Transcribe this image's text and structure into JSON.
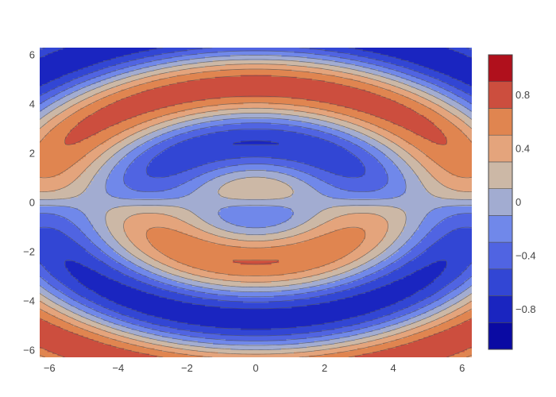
{
  "chart_data": {
    "type": "heatmap",
    "subtype": "filled-contour",
    "title": "",
    "xlabel": "",
    "ylabel": "",
    "xlim": [
      -6.283,
      6.283
    ],
    "ylim": [
      -6.283,
      6.283
    ],
    "x_ticks": [
      -6,
      -4,
      -2,
      0,
      2,
      4,
      6
    ],
    "x_tick_labels": [
      "−6",
      "−4",
      "−2",
      "0",
      "2",
      "4",
      "6"
    ],
    "y_ticks": [
      -6,
      -4,
      -2,
      0,
      2,
      4,
      6
    ],
    "y_tick_labels": [
      "−6",
      "−4",
      "−2",
      "0",
      "2",
      "4",
      "6"
    ],
    "z_function": "cos(sqrt(x^2+(y*4/3)^2)) * y / (1+|y|)",
    "zlim": [
      -1.1,
      1.1
    ],
    "contour_step": 0.2,
    "colorscale": [
      [
        0.0,
        "#0a0aa3"
      ],
      [
        0.1,
        "#1a25c0"
      ],
      [
        0.2,
        "#3246d4"
      ],
      [
        0.3,
        "#5064e2"
      ],
      [
        0.4,
        "#7088ea"
      ],
      [
        0.5,
        "#a2acd1"
      ],
      [
        0.6,
        "#ccb8a6"
      ],
      [
        0.7,
        "#e4a47c"
      ],
      [
        0.8,
        "#e08550"
      ],
      [
        0.9,
        "#cc4e3e"
      ],
      [
        1.0,
        "#c4202e"
      ],
      [
        1.01,
        "#b0101c"
      ]
    ],
    "levels": [
      -1.1,
      -0.9,
      -0.7,
      -0.5,
      -0.3,
      -0.1,
      0.1,
      0.3,
      0.5,
      0.7,
      0.9,
      1.1
    ],
    "level_colors": [
      "#0a0aa3",
      "#1a25c0",
      "#3246d4",
      "#5064e2",
      "#7088ea",
      "#a2acd1",
      "#ccb8a6",
      "#e4a47c",
      "#e08550",
      "#cc4e3e",
      "#b0101c"
    ],
    "colorbar": {
      "ticks": [
        -0.8,
        -0.4,
        0,
        0.4,
        0.8
      ],
      "tick_labels": [
        "−0.8",
        "−0.4",
        "0",
        "0.4",
        "0.8"
      ]
    },
    "grid": false,
    "line_color": "#555555"
  }
}
